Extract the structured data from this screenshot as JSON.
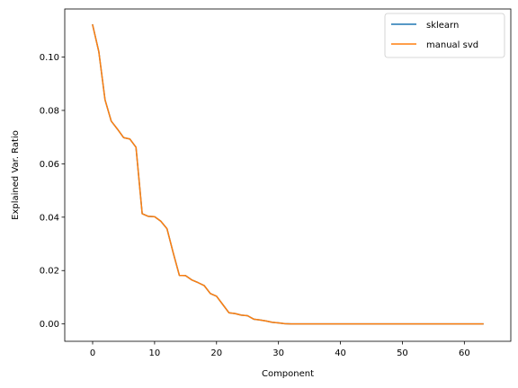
{
  "chart_data": {
    "type": "line",
    "title": "",
    "xlabel": "Component",
    "ylabel": "Explained Var. Ratio",
    "xlim": [
      -4.5,
      67.5
    ],
    "ylim": [
      -0.0065,
      0.118
    ],
    "xticks": [
      0,
      10,
      20,
      30,
      40,
      50,
      60
    ],
    "yticks": [
      0.0,
      0.02,
      0.04,
      0.06,
      0.08,
      0.1
    ],
    "ytick_labels": [
      "0.00",
      "0.02",
      "0.04",
      "0.06",
      "0.08",
      "0.10"
    ],
    "grid": false,
    "legend": {
      "position": "top-right"
    },
    "x": [
      0,
      1,
      2,
      3,
      4,
      5,
      6,
      7,
      8,
      9,
      10,
      11,
      12,
      13,
      14,
      15,
      16,
      17,
      18,
      19,
      20,
      21,
      22,
      23,
      24,
      25,
      26,
      27,
      28,
      29,
      30,
      31,
      32,
      33,
      34,
      35,
      36,
      37,
      38,
      39,
      40,
      41,
      42,
      43,
      44,
      45,
      46,
      47,
      48,
      49,
      50,
      51,
      52,
      53,
      54,
      55,
      56,
      57,
      58,
      59,
      60,
      61,
      62,
      63
    ],
    "series": [
      {
        "name": "sklearn",
        "color": "#1f77b4",
        "values": [
          0.112,
          0.102,
          0.084,
          0.076,
          0.073,
          0.0698,
          0.0693,
          0.0662,
          0.0413,
          0.0403,
          0.0402,
          0.0385,
          0.0357,
          0.0267,
          0.0182,
          0.0181,
          0.0165,
          0.0155,
          0.0144,
          0.0114,
          0.0104,
          0.0073,
          0.0042,
          0.0039,
          0.0033,
          0.0031,
          0.0018,
          0.0015,
          0.0011,
          0.0006,
          0.0004,
          0.0001,
          0,
          0,
          0,
          0,
          0,
          0,
          0,
          0,
          0,
          0,
          0,
          0,
          0,
          0,
          0,
          0,
          0,
          0,
          0,
          0,
          0,
          0,
          0,
          0,
          0,
          0,
          0,
          0,
          0,
          0,
          0,
          0
        ]
      },
      {
        "name": "manual svd",
        "color": "#ff7f0e",
        "values": [
          0.112,
          0.102,
          0.084,
          0.076,
          0.073,
          0.0698,
          0.0693,
          0.0662,
          0.0413,
          0.0403,
          0.0402,
          0.0385,
          0.0357,
          0.0267,
          0.0182,
          0.0181,
          0.0165,
          0.0155,
          0.0144,
          0.0114,
          0.0104,
          0.0073,
          0.0042,
          0.0039,
          0.0033,
          0.0031,
          0.0018,
          0.0015,
          0.0011,
          0.0006,
          0.0004,
          0.0001,
          0,
          0,
          0,
          0,
          0,
          0,
          0,
          0,
          0,
          0,
          0,
          0,
          0,
          0,
          0,
          0,
          0,
          0,
          0,
          0,
          0,
          0,
          0,
          0,
          0,
          0,
          0,
          0,
          0,
          0,
          0,
          0
        ]
      }
    ]
  }
}
